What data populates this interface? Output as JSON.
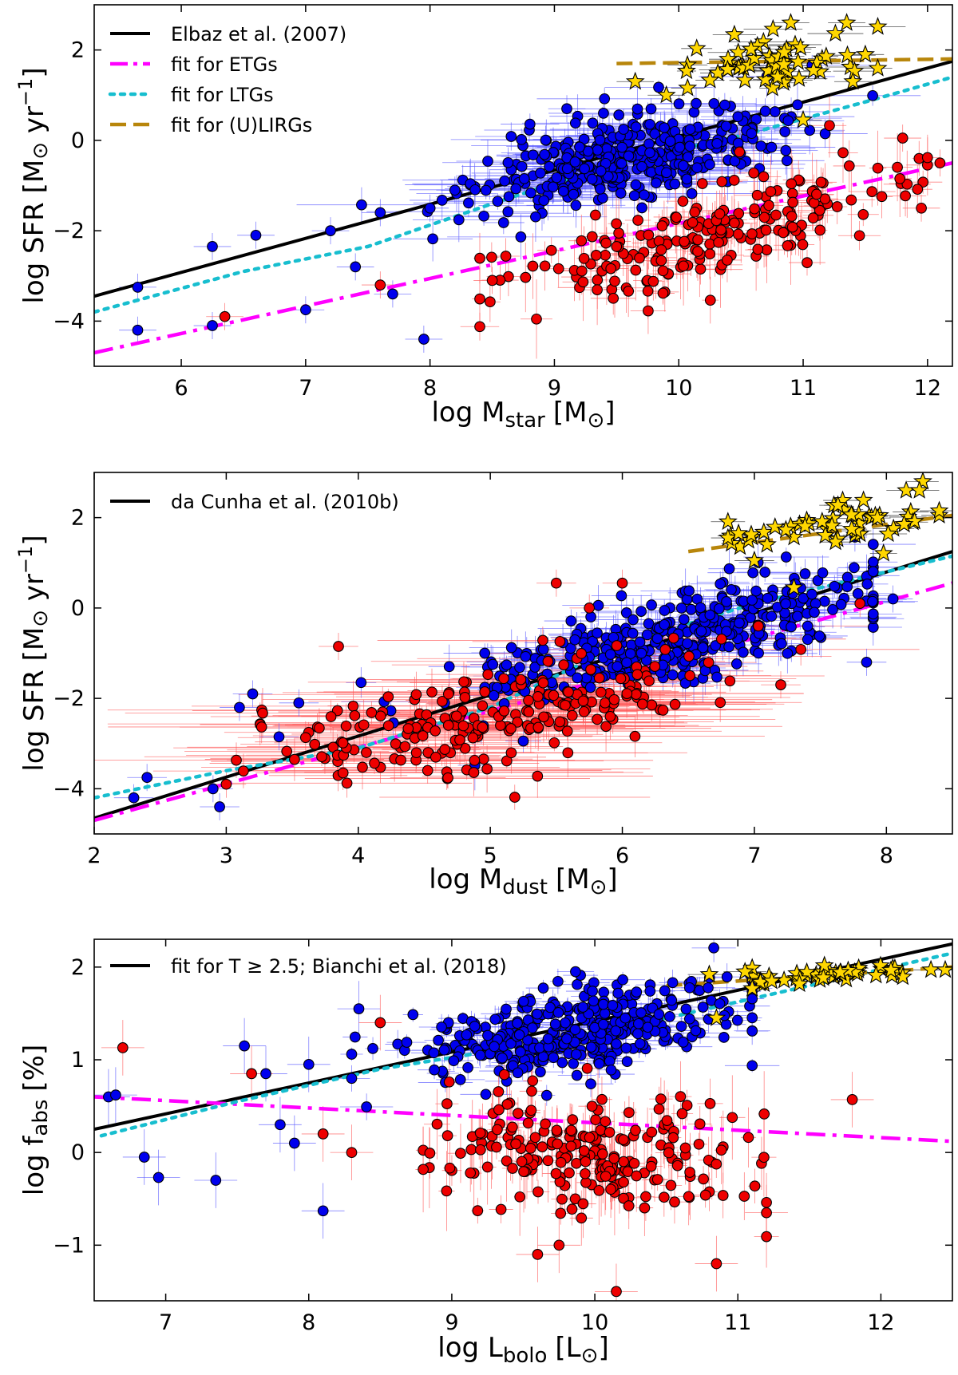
{
  "chart_data": [
    {
      "type": "scatter",
      "title": "",
      "xlabel": {
        "main": "log M",
        "sub": "star",
        "unit": "[M",
        "unit_sym": "⊙",
        "unit_close": "]"
      },
      "ylabel": {
        "main": "log SFR [M",
        "unit_sym": "⊙",
        "mid": " yr",
        "sup": "−1",
        "close": "]"
      },
      "xlim": [
        5.3,
        12.2
      ],
      "ylim": [
        -5,
        3
      ],
      "xticks": [
        6,
        7,
        8,
        9,
        10,
        11,
        12
      ],
      "yticks": [
        -4,
        -2,
        0,
        2
      ],
      "legend_position": "top-left",
      "lines": [
        {
          "name": "Elbaz et al. (2007)",
          "style": "solid",
          "color": "#000000",
          "points": [
            [
              5.3,
              -3.45
            ],
            [
              12.2,
              1.75
            ]
          ]
        },
        {
          "name": "fit for ETGs",
          "style": "dashdot",
          "color": "#ff00ff",
          "points": [
            [
              5.3,
              -4.7
            ],
            [
              12.2,
              -0.5
            ]
          ]
        },
        {
          "name": "fit for LTGs",
          "style": "dotted",
          "color": "#17becf",
          "points": [
            [
              5.3,
              -3.8
            ],
            [
              6.5,
              -2.9
            ],
            [
              7.5,
              -2.35
            ],
            [
              8.5,
              -1.4
            ],
            [
              9.5,
              -0.5
            ],
            [
              10.5,
              0.1
            ],
            [
              11.5,
              0.85
            ],
            [
              12.2,
              1.4
            ]
          ]
        },
        {
          "name": "fit for (U)LIRGs",
          "style": "dashed",
          "color": "#b8860b",
          "points": [
            [
              9.5,
              1.7
            ],
            [
              12.2,
              1.8
            ]
          ]
        }
      ],
      "clouds": [
        {
          "group": "LTG",
          "color": "#0000ee",
          "n": 360,
          "seed": 11,
          "x_mean": 9.6,
          "x_sd": 0.62,
          "x_range": [
            7.0,
            11.8
          ],
          "relation": [
            [
              7.0,
              -2.5
            ],
            [
              9.0,
              -0.6
            ],
            [
              11.5,
              0.5
            ]
          ],
          "y_sd": 0.45,
          "xerr": 0.38,
          "yerr": 0.35
        },
        {
          "group": "ETG",
          "color": "#ee0000",
          "n": 210,
          "seed": 23,
          "x_mean": 10.2,
          "x_sd": 0.8,
          "x_range": [
            8.4,
            12.0
          ],
          "relation": [
            [
              8.5,
              -3.0
            ],
            [
              10.0,
              -2.4
            ],
            [
              12.0,
              -0.6
            ]
          ],
          "y_sd": 0.5,
          "xerr": 0.12,
          "yerr": 0.55
        },
        {
          "group": "ULIRG",
          "color": "#ffd700",
          "n": 55,
          "seed": 37,
          "x_mean": 10.75,
          "x_sd": 0.35,
          "x_range": [
            9.6,
            11.6
          ],
          "relation": [
            [
              9.6,
              1.55
            ],
            [
              11.6,
              1.95
            ]
          ],
          "y_sd": 0.3,
          "xerr": 0.18,
          "yerr": 0.08
        }
      ],
      "points": [
        {
          "group": "LTG",
          "color": "#0000ee",
          "xy": [
            [
              5.65,
              -3.25
            ],
            [
              5.65,
              -4.2
            ],
            [
              6.25,
              -2.35
            ],
            [
              6.6,
              -2.1
            ],
            [
              7.2,
              -2.0
            ],
            [
              7.0,
              -3.75
            ],
            [
              7.95,
              -4.4
            ],
            [
              7.7,
              -3.4
            ],
            [
              6.25,
              -4.1
            ],
            [
              8.0,
              -1.5
            ],
            [
              7.6,
              -1.6
            ],
            [
              8.2,
              -1.1
            ],
            [
              7.4,
              -2.8
            ],
            [
              9.1,
              0.7
            ],
            [
              8.6,
              -0.9
            ]
          ]
        },
        {
          "group": "ETG",
          "color": "#ee0000",
          "xy": [
            [
              6.35,
              -3.9
            ],
            [
              7.6,
              -3.2
            ],
            [
              11.8,
              0.05
            ],
            [
              12.1,
              -0.5
            ],
            [
              11.95,
              -1.5
            ],
            [
              8.5,
              -3.1
            ]
          ]
        },
        {
          "group": "ULIRG",
          "color": "#ffd700",
          "xy": [
            [
              10.9,
              2.6
            ],
            [
              11.35,
              2.6
            ],
            [
              9.65,
              1.3
            ],
            [
              9.9,
              1.0
            ],
            [
              11.0,
              0.45
            ],
            [
              11.5,
              1.9
            ],
            [
              11.4,
              1.3
            ]
          ]
        }
      ]
    },
    {
      "type": "scatter",
      "title": "",
      "xlabel": {
        "main": "log M",
        "sub": "dust",
        "unit": "[M",
        "unit_sym": "⊙",
        "unit_close": "]"
      },
      "ylabel": {
        "main": "log SFR [M",
        "unit_sym": "⊙",
        "mid": " yr",
        "sup": "−1",
        "close": "]"
      },
      "xlim": [
        2,
        8.5
      ],
      "ylim": [
        -5,
        3
      ],
      "xticks": [
        2,
        3,
        4,
        5,
        6,
        7,
        8
      ],
      "yticks": [
        -4,
        -2,
        0,
        2
      ],
      "legend_position": "top-left",
      "lines": [
        {
          "name": "da Cunha et al. (2010b)",
          "style": "solid",
          "color": "#000000",
          "points": [
            [
              2.0,
              -4.65
            ],
            [
              8.5,
              1.25
            ]
          ]
        },
        {
          "name": "",
          "style": "dashdot",
          "color": "#ff00ff",
          "points": [
            [
              2.0,
              -4.7
            ],
            [
              8.5,
              0.55
            ]
          ]
        },
        {
          "name": "",
          "style": "dotted",
          "color": "#17becf",
          "points": [
            [
              2.0,
              -4.2
            ],
            [
              3.0,
              -3.6
            ],
            [
              4.0,
              -3.1
            ],
            [
              5.0,
              -2.2
            ],
            [
              6.0,
              -0.8
            ],
            [
              7.0,
              0.1
            ],
            [
              8.5,
              1.15
            ]
          ]
        },
        {
          "name": "",
          "style": "dashed",
          "color": "#b8860b",
          "points": [
            [
              6.5,
              1.25
            ],
            [
              8.5,
              2.05
            ]
          ]
        }
      ],
      "clouds": [
        {
          "group": "LTG",
          "color": "#0000ee",
          "n": 380,
          "seed": 41,
          "x_mean": 6.5,
          "x_sd": 0.8,
          "x_range": [
            3.2,
            7.9
          ],
          "relation": [
            [
              3.5,
              -2.8
            ],
            [
              6.0,
              -1.0
            ],
            [
              7.9,
              0.5
            ]
          ],
          "y_sd": 0.5,
          "xerr": 0.22,
          "yerr": 0.35
        },
        {
          "group": "ETG",
          "color": "#ee0000",
          "n": 230,
          "seed": 53,
          "x_mean": 5.1,
          "x_sd": 0.85,
          "x_range": [
            3.0,
            7.6
          ],
          "relation": [
            [
              3.0,
              -3.2
            ],
            [
              5.0,
              -2.6
            ],
            [
              7.5,
              -1.0
            ]
          ],
          "y_sd": 0.5,
          "xerr": 0.85,
          "yerr": 0.35
        },
        {
          "group": "ULIRG",
          "color": "#ffd700",
          "n": 55,
          "seed": 67,
          "x_mean": 7.7,
          "x_sd": 0.4,
          "x_range": [
            6.8,
            8.4
          ],
          "relation": [
            [
              6.8,
              1.5
            ],
            [
              8.4,
              2.1
            ]
          ],
          "y_sd": 0.28,
          "xerr": 0.1,
          "yerr": 0.08
        }
      ],
      "points": [
        {
          "group": "LTG",
          "color": "#0000ee",
          "xy": [
            [
              2.3,
              -4.2
            ],
            [
              2.4,
              -3.75
            ],
            [
              2.95,
              -4.4
            ],
            [
              2.9,
              -4.0
            ],
            [
              3.2,
              -1.9
            ],
            [
              3.1,
              -2.2
            ],
            [
              3.4,
              -2.85
            ],
            [
              3.55,
              -2.1
            ],
            [
              7.85,
              -1.2
            ],
            [
              8.05,
              0.2
            ]
          ]
        },
        {
          "group": "ETG",
          "color": "#ee0000",
          "xy": [
            [
              3.0,
              -3.9
            ],
            [
              3.85,
              -0.85
            ],
            [
              5.5,
              0.55
            ],
            [
              5.75,
              0.0
            ],
            [
              6.0,
              0.55
            ],
            [
              7.2,
              -1.7
            ],
            [
              7.8,
              0.1
            ]
          ]
        },
        {
          "group": "ULIRG",
          "color": "#ffd700",
          "xy": [
            [
              7.0,
              1.05
            ],
            [
              8.15,
              2.6
            ],
            [
              8.25,
              2.6
            ],
            [
              7.3,
              0.45
            ]
          ]
        }
      ]
    },
    {
      "type": "scatter",
      "title": "",
      "xlabel": {
        "main": "log L",
        "sub": "bolo",
        "unit": "[L",
        "unit_sym": "⊙",
        "unit_close": "]"
      },
      "ylabel": {
        "main": "log f",
        "sub": "abs",
        "unit": "[%]"
      },
      "xlim": [
        6.5,
        12.5
      ],
      "ylim": [
        -1.6,
        2.3
      ],
      "xticks": [
        7,
        8,
        9,
        10,
        11,
        12
      ],
      "yticks": [
        -1,
        0,
        1,
        2
      ],
      "legend_position": "top-left",
      "lines": [
        {
          "name": "fit for T ≥ 2.5; Bianchi et al. (2018)",
          "style": "solid",
          "color": "#000000",
          "points": [
            [
              6.5,
              0.25
            ],
            [
              12.5,
              2.25
            ]
          ]
        },
        {
          "name": "",
          "style": "dashdot",
          "color": "#ff00ff",
          "points": [
            [
              6.5,
              0.6
            ],
            [
              12.5,
              0.12
            ]
          ]
        },
        {
          "name": "",
          "style": "dotted",
          "color": "#17becf",
          "points": [
            [
              6.55,
              0.18
            ],
            [
              7.5,
              0.55
            ],
            [
              8.5,
              0.9
            ],
            [
              9.5,
              1.15
            ],
            [
              10.5,
              1.45
            ],
            [
              11.5,
              1.8
            ],
            [
              12.5,
              2.15
            ]
          ]
        },
        {
          "name": "",
          "style": "dashed",
          "color": "#b8860b",
          "points": [
            [
              10.5,
              1.8
            ],
            [
              12.5,
              2.0
            ]
          ]
        }
      ],
      "clouds": [
        {
          "group": "LTG",
          "color": "#0000ee",
          "n": 380,
          "seed": 71,
          "x_mean": 9.9,
          "x_sd": 0.6,
          "x_range": [
            8.3,
            11.1
          ],
          "relation": [
            [
              8.3,
              1.0
            ],
            [
              10.0,
              1.35
            ],
            [
              11.1,
              1.6
            ]
          ],
          "y_sd": 0.22,
          "xerr": 0.12,
          "yerr": 0.1
        },
        {
          "group": "ETG",
          "color": "#ee0000",
          "n": 220,
          "seed": 83,
          "x_mean": 10.0,
          "x_sd": 0.55,
          "x_range": [
            8.8,
            11.2
          ],
          "relation": [
            [
              8.8,
              0.0
            ],
            [
              11.2,
              -0.1
            ]
          ],
          "y_sd": 0.33,
          "xerr": 0.06,
          "yerr": 0.3
        },
        {
          "group": "ULIRG",
          "color": "#ffd700",
          "n": 48,
          "seed": 97,
          "x_mean": 11.6,
          "x_sd": 0.35,
          "x_range": [
            11.1,
            12.4
          ],
          "relation": [
            [
              11.1,
              1.88
            ],
            [
              12.4,
              1.98
            ]
          ],
          "y_sd": 0.05,
          "xerr": 0.05,
          "yerr": 0.04
        }
      ],
      "points": [
        {
          "group": "LTG",
          "color": "#0000ee",
          "xy": [
            [
              6.6,
              0.6
            ],
            [
              6.65,
              0.62
            ],
            [
              6.85,
              -0.05
            ],
            [
              6.95,
              -0.27
            ],
            [
              7.35,
              -0.3
            ],
            [
              7.55,
              1.15
            ],
            [
              7.8,
              0.3
            ],
            [
              7.9,
              0.1
            ],
            [
              8.1,
              -0.63
            ],
            [
              8.35,
              1.55
            ],
            [
              8.0,
              0.95
            ],
            [
              7.7,
              0.85
            ]
          ]
        },
        {
          "group": "ETG",
          "color": "#ee0000",
          "xy": [
            [
              6.7,
              1.13
            ],
            [
              7.6,
              0.85
            ],
            [
              8.1,
              0.2
            ],
            [
              8.3,
              0.0
            ],
            [
              8.5,
              1.4
            ],
            [
              9.6,
              -1.1
            ],
            [
              9.75,
              -1.0
            ],
            [
              10.15,
              -1.5
            ],
            [
              11.2,
              -0.65
            ],
            [
              11.8,
              0.57
            ],
            [
              10.85,
              -1.2
            ]
          ]
        },
        {
          "group": "ULIRG",
          "color": "#ffd700",
          "xy": [
            [
              10.8,
              1.92
            ],
            [
              10.85,
              1.45
            ],
            [
              11.05,
              1.95
            ],
            [
              12.35,
              1.97
            ],
            [
              12.45,
              1.97
            ]
          ]
        }
      ]
    }
  ]
}
